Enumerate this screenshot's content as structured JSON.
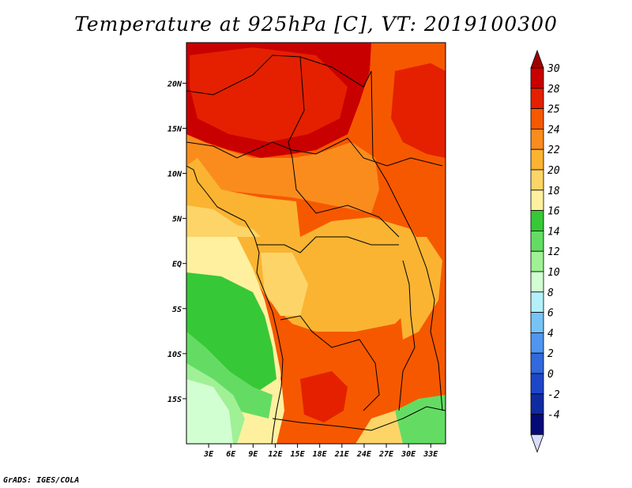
{
  "title": "Temperature at 925hPa [C], VT: 2019100300",
  "credit": "GrADS: IGES/COLA",
  "map": {
    "lon_range": [
      0,
      35
    ],
    "lat_range": [
      -20,
      24.5
    ],
    "lon_ticks": [
      {
        "value": 3,
        "label": "3E"
      },
      {
        "value": 6,
        "label": "6E"
      },
      {
        "value": 9,
        "label": "9E"
      },
      {
        "value": 12,
        "label": "12E"
      },
      {
        "value": 15,
        "label": "15E"
      },
      {
        "value": 18,
        "label": "18E"
      },
      {
        "value": 21,
        "label": "21E"
      },
      {
        "value": 24,
        "label": "24E"
      },
      {
        "value": 27,
        "label": "27E"
      },
      {
        "value": 30,
        "label": "30E"
      },
      {
        "value": 33,
        "label": "33E"
      }
    ],
    "lat_ticks": [
      {
        "value": 20,
        "label": "20N"
      },
      {
        "value": 15,
        "label": "15N"
      },
      {
        "value": 10,
        "label": "10N"
      },
      {
        "value": 5,
        "label": "5N"
      },
      {
        "value": 0,
        "label": "EQ"
      },
      {
        "value": -5,
        "label": "5S"
      },
      {
        "value": -10,
        "label": "10S"
      },
      {
        "value": -15,
        "label": "15S"
      }
    ]
  },
  "colorbar": {
    "labels": [
      "30",
      "28",
      "25",
      "24",
      "22",
      "20",
      "18",
      "16",
      "14",
      "12",
      "10",
      "8",
      "6",
      "4",
      "2",
      "0",
      "-2",
      "-4"
    ],
    "colors": [
      "#c80000",
      "#e42000",
      "#f65800",
      "#fa8c1e",
      "#fab432",
      "#fdd468",
      "#fff0a0",
      "#37c837",
      "#64dc64",
      "#a0f096",
      "#d2ffd2",
      "#b4f0fa",
      "#78c3f5",
      "#5096f0",
      "#3269dc",
      "#1e46c8",
      "#0f2ba0",
      "#050a78"
    ],
    "top_arrow_color": "#a00000",
    "bottom_arrow_color": "#d8dcff"
  }
}
